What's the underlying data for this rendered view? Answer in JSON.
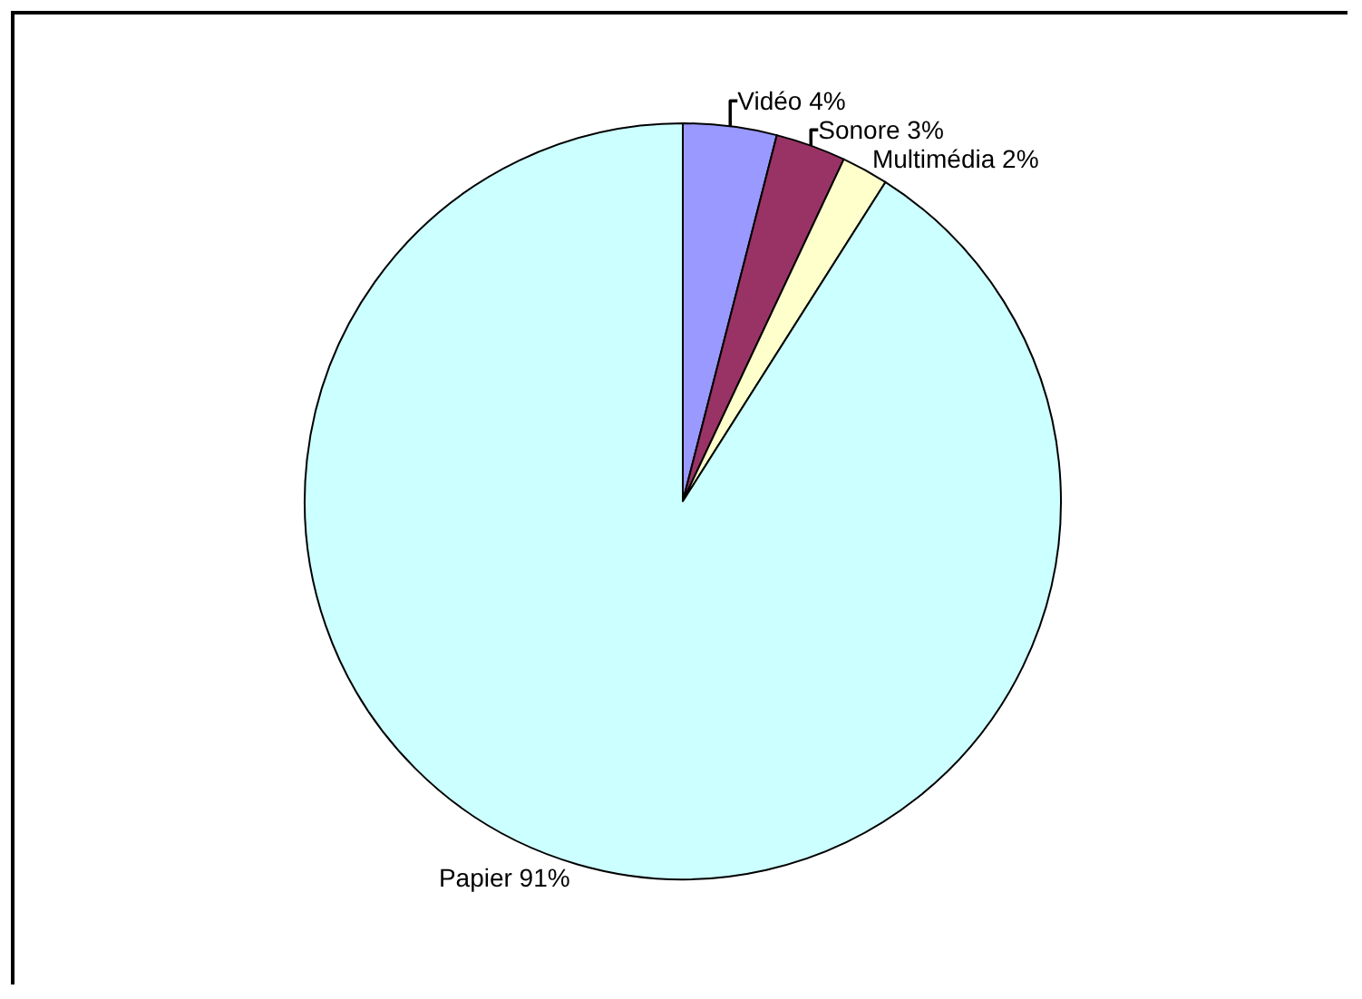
{
  "chart_data": {
    "type": "pie",
    "categories": [
      "Vidéo",
      "Sonore",
      "Multimédia",
      "Papier"
    ],
    "values": [
      4,
      3,
      2,
      91
    ],
    "colors": [
      "#9999ff",
      "#993366",
      "#ffffcc",
      "#ccffff"
    ],
    "value_labels": [
      "4%",
      "3%",
      "2%",
      "91%"
    ]
  }
}
